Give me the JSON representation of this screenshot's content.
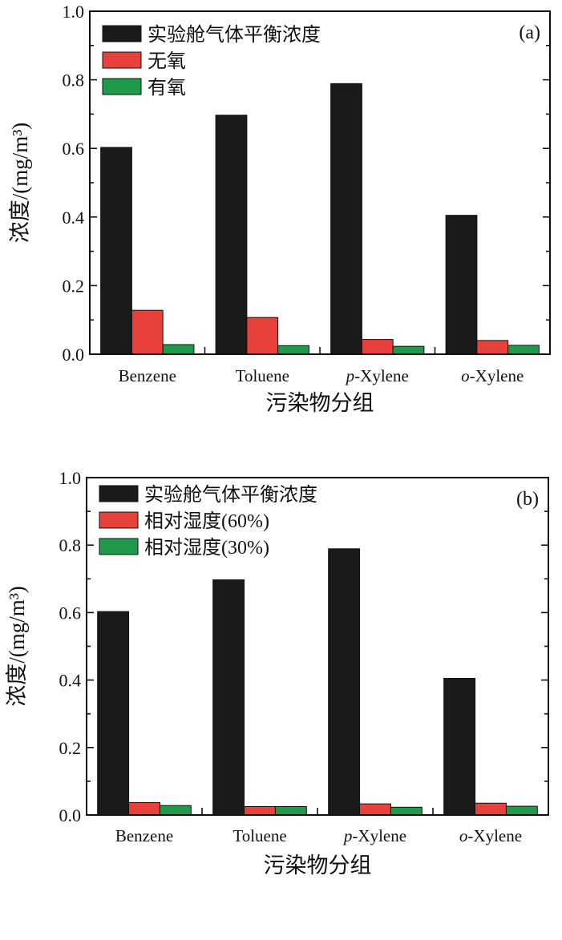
{
  "chart_data": [
    {
      "type": "bar",
      "panel_label": "(a)",
      "categories": [
        "Benzene",
        "Toluene",
        "p-Xylene",
        "o-Xylene"
      ],
      "category_italic_prefix": [
        "",
        "",
        "p",
        "o"
      ],
      "series": [
        {
          "name": "实验舱气体平衡浓度",
          "color": "#1a1a1a",
          "values": [
            0.603,
            0.697,
            0.789,
            0.405
          ]
        },
        {
          "name": "无氧",
          "color": "#e8403a",
          "values": [
            0.128,
            0.107,
            0.043,
            0.04
          ]
        },
        {
          "name": "有氧",
          "color": "#1e9a4a",
          "values": [
            0.028,
            0.025,
            0.023,
            0.026
          ]
        }
      ],
      "xlabel": "污染物分组",
      "ylabel": "浓度/(mg/m³)",
      "ylim": [
        0,
        1.0
      ],
      "yticks": [
        "0.0",
        "0.2",
        "0.4",
        "0.6",
        "0.8",
        "1.0"
      ],
      "legend_position": "top-left",
      "grid": false
    },
    {
      "type": "bar",
      "panel_label": "(b)",
      "categories": [
        "Benzene",
        "Toluene",
        "p-Xylene",
        "o-Xylene"
      ],
      "category_italic_prefix": [
        "",
        "",
        "p",
        "o"
      ],
      "series": [
        {
          "name": "实验舱气体平衡浓度",
          "color": "#1a1a1a",
          "values": [
            0.603,
            0.697,
            0.789,
            0.405
          ]
        },
        {
          "name": "相对湿度(60%)",
          "color": "#e8403a",
          "values": [
            0.037,
            0.025,
            0.033,
            0.035
          ]
        },
        {
          "name": "相对湿度(30%)",
          "color": "#1e9a4a",
          "values": [
            0.028,
            0.025,
            0.023,
            0.026
          ]
        }
      ],
      "xlabel": "污染物分组",
      "ylabel": "浓度/(mg/m³)",
      "ylim": [
        0,
        1.0
      ],
      "yticks": [
        "0.0",
        "0.2",
        "0.4",
        "0.6",
        "0.8",
        "1.0"
      ],
      "legend_position": "top-left",
      "grid": false
    }
  ]
}
